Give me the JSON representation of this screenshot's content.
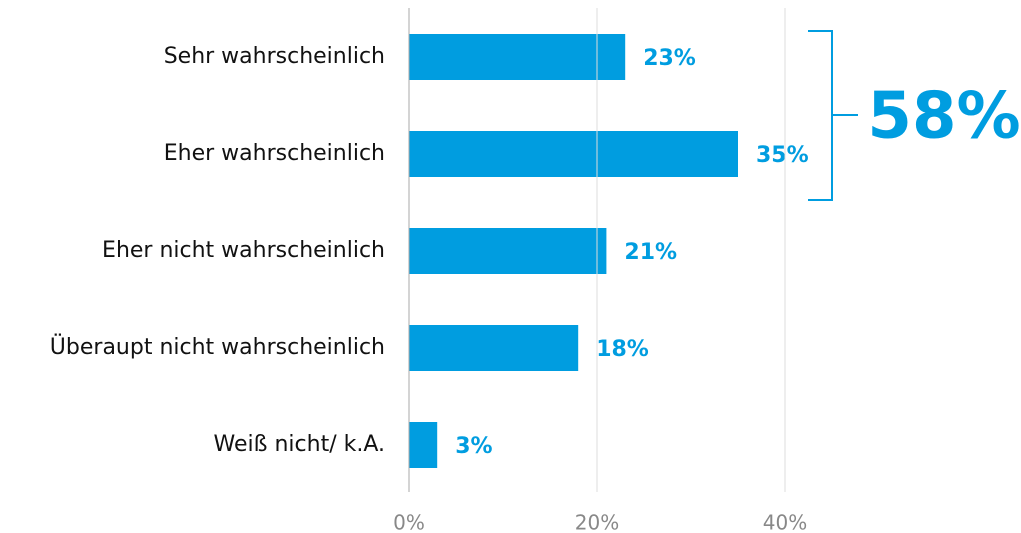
{
  "chart_data": {
    "type": "bar",
    "orientation": "horizontal",
    "categories": [
      "Sehr wahrscheinlich",
      "Eher wahrscheinlich",
      "Eher nicht wahrscheinlich",
      "Überaupt nicht wahrscheinlich",
      "Weiß nicht/ k.A."
    ],
    "values": [
      23,
      35,
      21,
      18,
      3
    ],
    "value_labels": [
      "23%",
      "35%",
      "21%",
      "18%",
      "3%"
    ],
    "color": "#009de0",
    "xlim": [
      0,
      40
    ],
    "xticks": [
      {
        "value": 0,
        "label": "0%"
      },
      {
        "value": 20,
        "label": "20%"
      },
      {
        "value": 40,
        "label": "40%"
      }
    ],
    "grid": true,
    "annotation": "58%"
  }
}
